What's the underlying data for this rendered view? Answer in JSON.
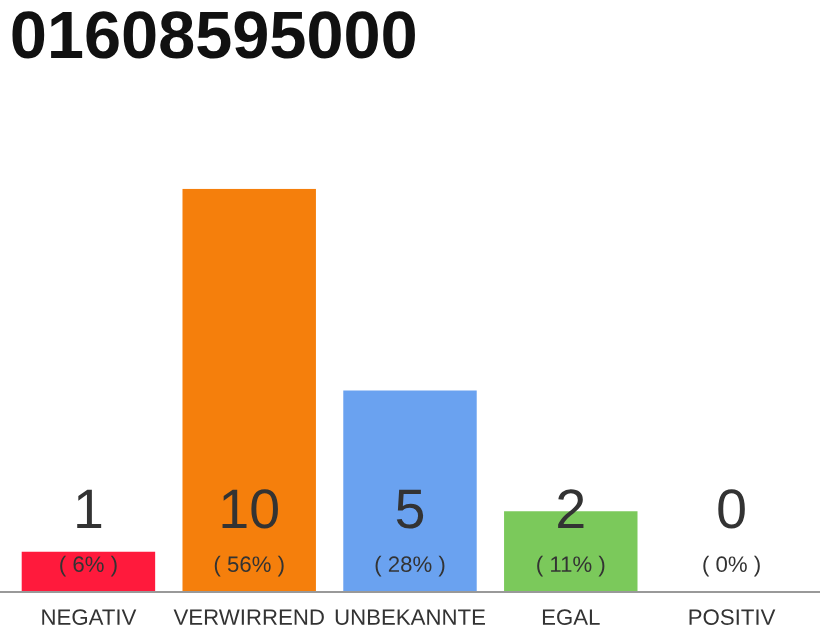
{
  "chart_data": {
    "type": "bar",
    "title": "01608595000",
    "categories": [
      "NEGATIV",
      "VERWIRREND",
      "UNBEKANNTE",
      "EGAL",
      "POSITIV"
    ],
    "values": [
      1,
      10,
      5,
      2,
      0
    ],
    "colors": [
      "#ff1a3c",
      "#f57f0c",
      "#6aa2f0",
      "#7bc95b",
      "#bbbbbb"
    ],
    "data_labels": true,
    "annotations": [
      "( 6% )",
      "( 56% )",
      "( 28% )",
      "( 11% )",
      "( 0% )"
    ],
    "grid": false,
    "legend": false
  }
}
